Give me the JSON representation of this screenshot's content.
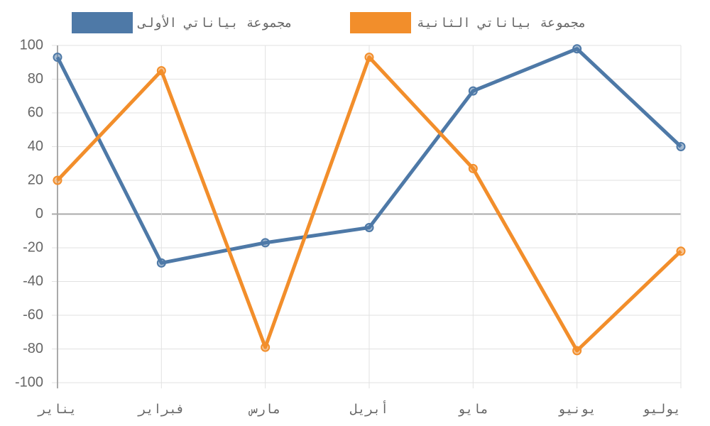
{
  "chart_data": {
    "type": "line",
    "categories": [
      "يناير",
      "فبراير",
      "مارس",
      "أبريل",
      "مايو",
      "يونيو",
      "يوليو"
    ],
    "series": [
      {
        "name": "مجموعة بياناتي الأولى",
        "color": "#4e79a7",
        "values": [
          93,
          -29,
          -17,
          -8,
          73,
          98,
          40
        ]
      },
      {
        "name": "مجموعة بياناتي الثانية",
        "color": "#f28e2b",
        "values": [
          20,
          85,
          -79,
          93,
          27,
          -81,
          -22
        ]
      }
    ],
    "ylim": [
      -100,
      100
    ],
    "yticks": [
      100,
      80,
      60,
      40,
      20,
      0,
      -20,
      -40,
      -60,
      -80,
      -100
    ],
    "grid": true,
    "legend": "top"
  }
}
